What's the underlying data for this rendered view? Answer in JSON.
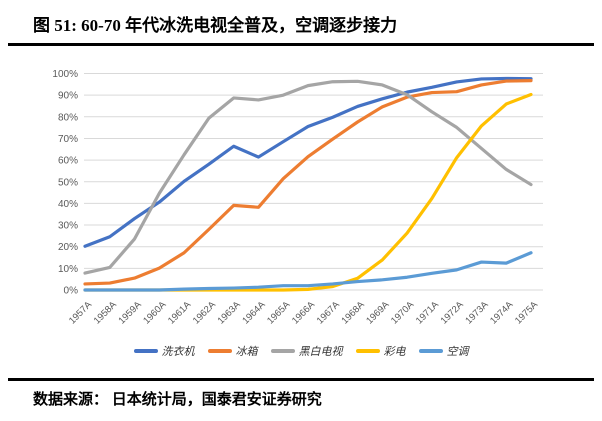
{
  "header": {
    "title": "图 51:  60-70 年代冰洗电视全普及，空调逐步接力"
  },
  "footer": {
    "source": "数据来源：  日本统计局，国泰君安证券研究"
  },
  "chart_data": {
    "type": "line",
    "title": "图 51:  60-70 年代冰洗电视全普及，空调逐步接力",
    "xlabel": "",
    "ylabel": "",
    "ylim": [
      0,
      100
    ],
    "ytick_step": 10,
    "ytick_suffix": "%",
    "grid": true,
    "legend_position": "bottom",
    "colors": {
      "gridline": "#d9d9d9",
      "axis_text": "#595959"
    },
    "categories": [
      "1957A",
      "1958A",
      "1959A",
      "1960A",
      "1961A",
      "1962A",
      "1963A",
      "1964A",
      "1965A",
      "1966A",
      "1967A",
      "1968A",
      "1969A",
      "1970A",
      "1971A",
      "1972A",
      "1973A",
      "1974A",
      "1975A"
    ],
    "series": [
      {
        "key": "washing-machine",
        "name": "洗衣机",
        "color": "#4472c4",
        "values": [
          20.2,
          24.6,
          33.0,
          40.6,
          50.2,
          58.1,
          66.4,
          61.4,
          68.5,
          75.5,
          79.8,
          84.8,
          88.3,
          91.4,
          93.6,
          96.1,
          97.5,
          97.7,
          97.6
        ]
      },
      {
        "key": "refrigerator",
        "name": "冰箱",
        "color": "#ed7d31",
        "values": [
          2.8,
          3.2,
          5.5,
          10.1,
          17.2,
          28.0,
          39.1,
          38.2,
          51.4,
          61.6,
          69.7,
          77.6,
          84.6,
          89.1,
          91.2,
          91.6,
          94.7,
          96.5,
          96.7
        ]
      },
      {
        "key": "bw-tv",
        "name": "黑白电视",
        "color": "#a5a5a5",
        "values": [
          7.8,
          10.4,
          23.6,
          44.7,
          62.5,
          79.4,
          88.7,
          87.8,
          90.0,
          94.4,
          96.2,
          96.4,
          94.7,
          90.2,
          82.3,
          75.1,
          65.4,
          55.7,
          48.7
        ]
      },
      {
        "key": "color-tv",
        "name": "彩电",
        "color": "#ffc000",
        "values": [
          0,
          0,
          0,
          0,
          0,
          0,
          0,
          0,
          0,
          0.3,
          1.6,
          5.4,
          13.9,
          26.3,
          42.3,
          61.1,
          75.8,
          85.9,
          90.3
        ]
      },
      {
        "key": "air-conditioner",
        "name": "空调",
        "color": "#5b9bd5",
        "values": [
          0,
          0,
          0,
          0,
          0.4,
          0.7,
          0.9,
          1.3,
          2.0,
          2.0,
          2.8,
          3.9,
          4.7,
          5.9,
          7.7,
          9.3,
          12.9,
          12.4,
          17.2
        ]
      }
    ]
  }
}
